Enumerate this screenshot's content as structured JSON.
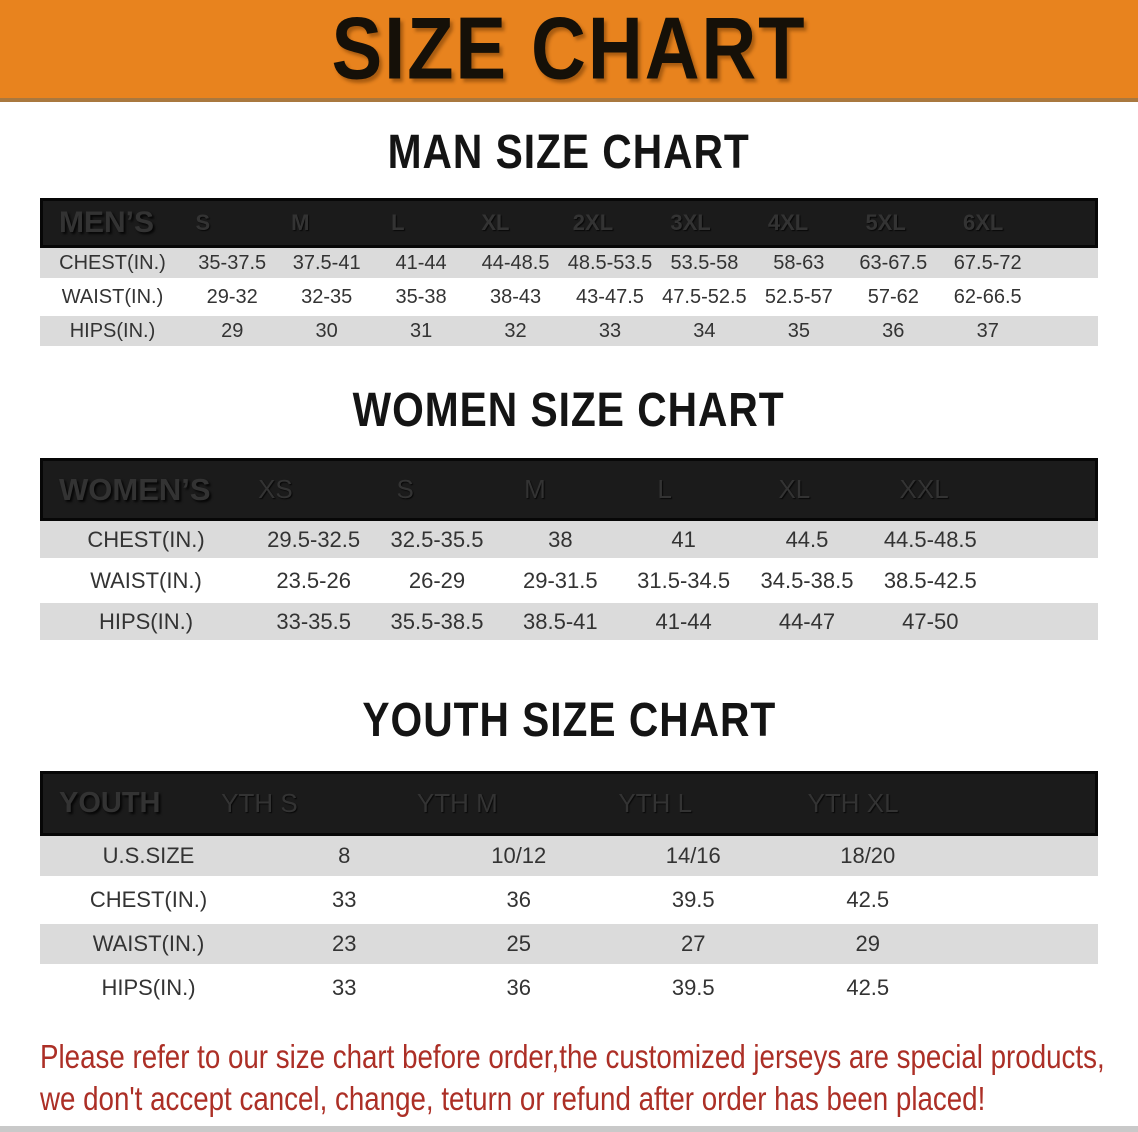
{
  "banner": {
    "title": "SIZE CHART"
  },
  "sections": [
    {
      "heading": "MAN SIZE CHART",
      "table": {
        "label": "MEN’S",
        "columns": [
          "S",
          "M",
          "L",
          "XL",
          "2XL",
          "3XL",
          "4XL",
          "5XL",
          "6XL"
        ],
        "rows": [
          {
            "label": "CHEST(IN.)",
            "values": [
              "35-37.5",
              "37.5-41",
              "41-44",
              "44-48.5",
              "48.5-53.5",
              "53.5-58",
              "58-63",
              "63-67.5",
              "67.5-72"
            ]
          },
          {
            "label": "WAIST(IN.)",
            "values": [
              "29-32",
              "32-35",
              "35-38",
              "38-43",
              "43-47.5",
              "47.5-52.5",
              "52.5-57",
              "57-62",
              "62-66.5"
            ]
          },
          {
            "label": "HIPS(IN.)",
            "values": [
              "29",
              "30",
              "31",
              "32",
              "33",
              "34",
              "35",
              "36",
              "37"
            ]
          }
        ]
      }
    },
    {
      "heading": "WOMEN SIZE CHART",
      "table": {
        "label": "WOMEN’S",
        "columns": [
          "XS",
          "S",
          "M",
          "L",
          "XL",
          "XXL"
        ],
        "rows": [
          {
            "label": "CHEST(IN.)",
            "values": [
              "29.5-32.5",
              "32.5-35.5",
              "38",
              "41",
              "44.5",
              "44.5-48.5"
            ]
          },
          {
            "label": "WAIST(IN.)",
            "values": [
              "23.5-26",
              "26-29",
              "29-31.5",
              "31.5-34.5",
              "34.5-38.5",
              "38.5-42.5"
            ]
          },
          {
            "label": "HIPS(IN.)",
            "values": [
              "33-35.5",
              "35.5-38.5",
              "38.5-41",
              "41-44",
              "44-47",
              "47-50"
            ]
          }
        ]
      }
    },
    {
      "heading": "YOUTH SIZE CHART",
      "table": {
        "label": "YOUTH",
        "columns": [
          "YTH S",
          "YTH M",
          "YTH L",
          "YTH XL"
        ],
        "rows": [
          {
            "label": "U.S.SIZE",
            "values": [
              "8",
              "10/12",
              "14/16",
              "18/20"
            ]
          },
          {
            "label": "CHEST(IN.)",
            "values": [
              "33",
              "36",
              "39.5",
              "42.5"
            ]
          },
          {
            "label": "WAIST(IN.)",
            "values": [
              "23",
              "25",
              "27",
              "29"
            ]
          },
          {
            "label": "HIPS(IN.)",
            "values": [
              "33",
              "36",
              "39.5",
              "42.5"
            ]
          }
        ]
      }
    }
  ],
  "disclaimer": {
    "line1": "Please refer to our size chart before order,the customized jerseys are special products,",
    "line2": "we don't accept cancel, change, teturn or refund after order has been placed!"
  },
  "colors": {
    "banner_bg": "#E8831E",
    "header_bar": "#1B1B1B",
    "row_gray": "#DBDBDB",
    "row_white": "#FFFFFF",
    "disclaimer_red": "#AC2F26"
  }
}
